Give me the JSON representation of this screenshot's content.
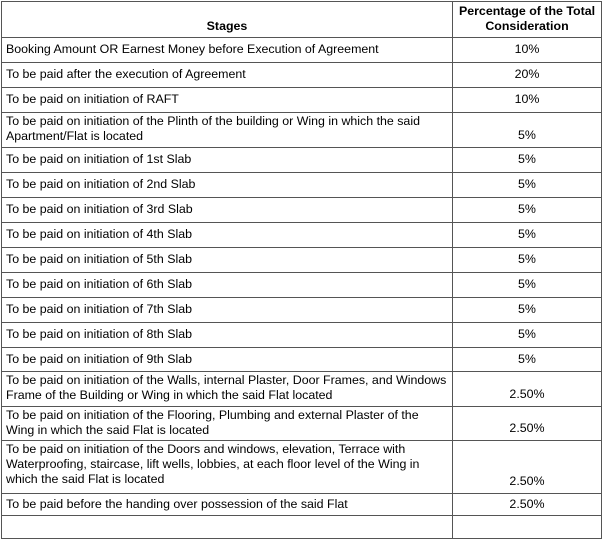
{
  "headers": {
    "stages": "Stages",
    "percentage": "Percentage of the Total Consideration"
  },
  "rows": [
    {
      "stage": "Booking Amount OR Earnest Money before Execution of Agreement",
      "percentage": "10%"
    },
    {
      "stage": "To be paid after the execution of Agreement",
      "percentage": "20%"
    },
    {
      "stage": "To be paid on initiation of RAFT",
      "percentage": "10%"
    },
    {
      "stage": "To be paid on initiation of the Plinth of the building or Wing in which the said Apartment/Flat is located",
      "percentage": "5%"
    },
    {
      "stage": "To be paid on initiation of 1st Slab",
      "percentage": "5%"
    },
    {
      "stage": "To be paid on initiation of 2nd Slab",
      "percentage": "5%"
    },
    {
      "stage": "To be paid on initiation of 3rd Slab",
      "percentage": "5%"
    },
    {
      "stage": "To be paid on initiation of 4th Slab",
      "percentage": "5%"
    },
    {
      "stage": "To be paid on initiation of 5th Slab",
      "percentage": "5%"
    },
    {
      "stage": "To be paid on initiation of 6th Slab",
      "percentage": "5%"
    },
    {
      "stage": "To be paid on initiation of 7th Slab",
      "percentage": "5%"
    },
    {
      "stage": "To be paid on initiation of 8th Slab",
      "percentage": "5%"
    },
    {
      "stage": "To be paid on initiation of 9th Slab",
      "percentage": "5%"
    },
    {
      "stage": "To be paid on initiation of the Walls, internal Plaster, Door Frames, and Windows Frame of the Building or Wing in which the said Flat located",
      "percentage": "2.50%"
    },
    {
      "stage": "To be paid on initiation of the Flooring, Plumbing and external Plaster of the Wing in which the said Flat is located",
      "percentage": "2.50%"
    },
    {
      "stage": "To be paid on initiation of the Doors and windows, elevation, Terrace with Waterproofing, staircase, lift wells, lobbies, at each floor level of the Wing in which the said Flat is located",
      "percentage": "2.50%"
    },
    {
      "stage": "To be paid before the handing over possession of the said Flat",
      "percentage": "2.50%"
    },
    {
      "stage": "",
      "percentage": ""
    }
  ]
}
